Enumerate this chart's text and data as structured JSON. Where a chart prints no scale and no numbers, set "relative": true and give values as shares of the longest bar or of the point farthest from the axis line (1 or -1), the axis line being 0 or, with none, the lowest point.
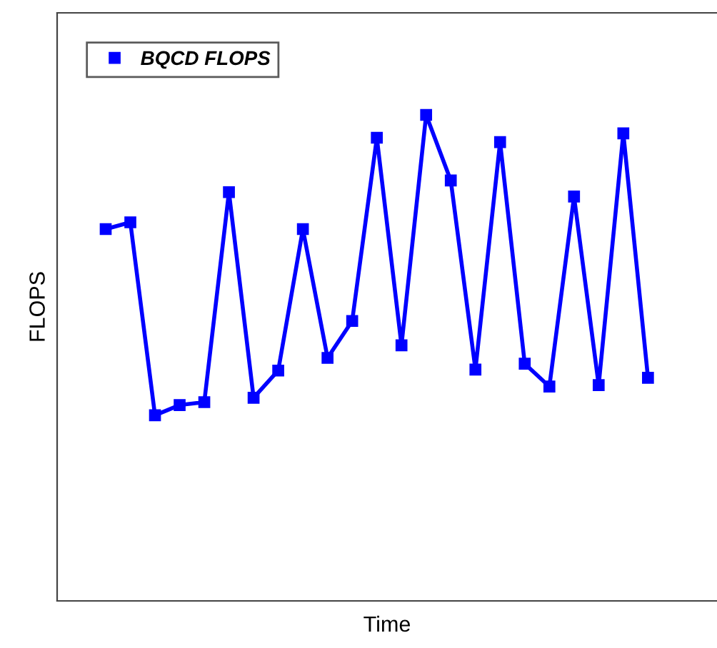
{
  "chart_data": {
    "type": "line",
    "xlabel": "Time",
    "ylabel": "FLOPS",
    "relative": true,
    "categories": [
      null,
      null,
      null,
      null,
      null,
      null,
      null,
      null,
      null,
      null,
      null,
      null,
      null,
      null,
      null,
      null,
      null,
      null,
      null,
      null,
      null,
      null,
      null
    ],
    "series": [
      {
        "name": "BQCD FLOPS",
        "color": "#0000ff",
        "values": [
          0.765,
          0.779,
          0.382,
          0.403,
          0.409,
          0.841,
          0.418,
          0.474,
          0.765,
          0.5,
          0.576,
          0.953,
          0.526,
          1,
          0.865,
          0.476,
          0.944,
          0.488,
          0.441,
          0.832,
          0.444,
          0.962,
          0.459
        ]
      }
    ],
    "marker": "square",
    "line_style": "solid",
    "legend": "top left",
    "grid": false
  }
}
